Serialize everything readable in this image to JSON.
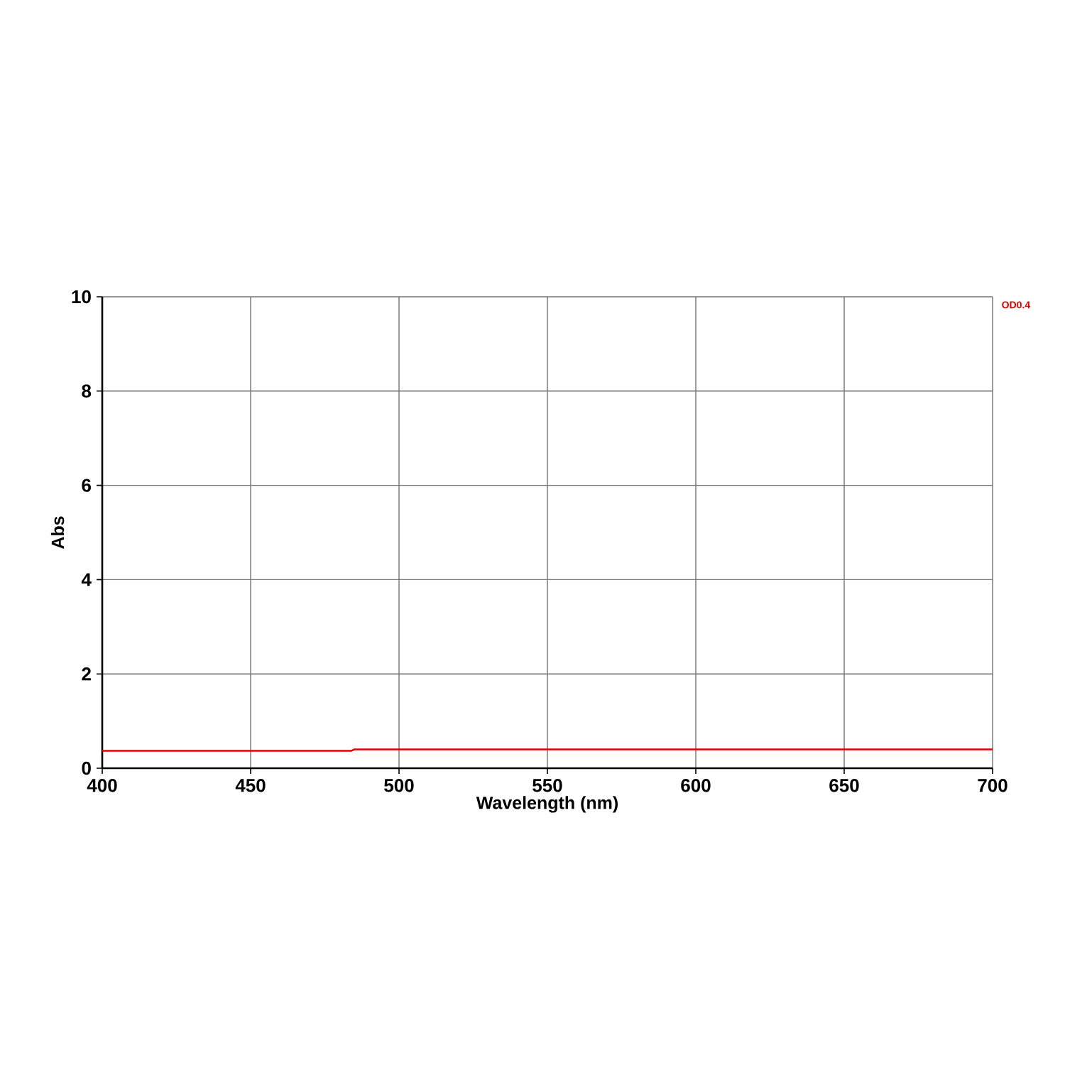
{
  "chart_data": {
    "type": "line",
    "xlabel": "Wavelength (nm)",
    "ylabel": "Abs",
    "x": [
      400,
      484,
      485,
      700
    ],
    "series": [
      {
        "name": "OD0.4",
        "color": "#e00000",
        "values": [
          0.37,
          0.37,
          0.4,
          0.4
        ]
      }
    ],
    "xlim": [
      400,
      700
    ],
    "ylim": [
      0,
      10
    ],
    "xticks": [
      400,
      450,
      500,
      550,
      600,
      650,
      700
    ],
    "yticks": [
      0,
      2,
      4,
      6,
      8,
      10
    ],
    "grid": true,
    "legend": "top right"
  }
}
